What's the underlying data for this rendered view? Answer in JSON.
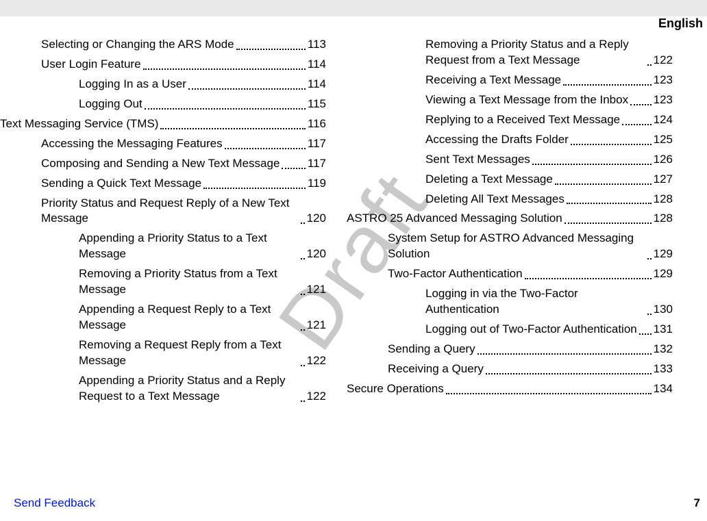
{
  "header": {
    "language": "English"
  },
  "watermark": "Draft",
  "footer": {
    "feedback": "Send Feedback",
    "page": "7"
  },
  "columns": {
    "left": [
      {
        "indent": 1,
        "text": "Selecting or Changing the ARS Mode",
        "page": "113"
      },
      {
        "indent": 1,
        "text": "User Login Feature",
        "page": "114"
      },
      {
        "indent": 2,
        "text": "Logging In as a User",
        "page": "114"
      },
      {
        "indent": 2,
        "text": "Logging Out",
        "page": "115"
      },
      {
        "indent": 0,
        "text": "Text Messaging Service (TMS)",
        "page": "116"
      },
      {
        "indent": 1,
        "text": "Accessing the Messaging Features",
        "page": "117"
      },
      {
        "indent": 1,
        "text": "Composing and Sending a New Text Message",
        "page": "117"
      },
      {
        "indent": 1,
        "text": "Sending a Quick Text Message",
        "page": "119"
      },
      {
        "indent": 1,
        "text": "Priority Status and Request Reply of a New Text Message",
        "page": "120"
      },
      {
        "indent": 2,
        "text": "Appending a Priority Status to a Text Message",
        "page": "120"
      },
      {
        "indent": 2,
        "text": "Removing a Priority Status from a Text Message",
        "page": "121"
      },
      {
        "indent": 2,
        "text": "Appending a Request Reply to a Text Message",
        "page": "121"
      },
      {
        "indent": 2,
        "text": "Removing a Request Reply from a Text Message",
        "page": "122"
      },
      {
        "indent": 2,
        "text": "Appending a Priority Status and a Reply Request to a Text Message",
        "page": "122"
      }
    ],
    "right": [
      {
        "indent": 2,
        "text": "Removing a Priority Status and a Reply Request from a Text Message",
        "page": "122"
      },
      {
        "indent": 2,
        "text": "Receiving a Text Message",
        "page": "123"
      },
      {
        "indent": 2,
        "text": "Viewing a Text Message from the Inbox",
        "page": "123"
      },
      {
        "indent": 2,
        "text": "Replying to a Received Text Message",
        "page": "124"
      },
      {
        "indent": 2,
        "text": "Accessing the Drafts Folder",
        "page": "125"
      },
      {
        "indent": 2,
        "text": "Sent Text Messages",
        "page": "126"
      },
      {
        "indent": 2,
        "text": "Deleting a Text Message",
        "page": "127"
      },
      {
        "indent": 2,
        "text": "Deleting All Text Messages",
        "page": "128"
      },
      {
        "indent": 0,
        "text": "ASTRO 25 Advanced Messaging Solution",
        "page": "128"
      },
      {
        "indent": 1,
        "text": "System Setup for ASTRO Advanced Messaging Solution",
        "page": "129"
      },
      {
        "indent": 1,
        "text": "Two-Factor Authentication",
        "page": "129"
      },
      {
        "indent": 2,
        "text": "Logging in via the Two-Factor Authentication",
        "page": "130"
      },
      {
        "indent": 2,
        "text": "Logging out of Two-Factor Authentication",
        "page": "131"
      },
      {
        "indent": 1,
        "text": "Sending a Query",
        "page": "132"
      },
      {
        "indent": 1,
        "text": "Receiving a Query",
        "page": "133"
      },
      {
        "indent": 0,
        "text": "Secure Operations",
        "page": "134"
      }
    ]
  }
}
